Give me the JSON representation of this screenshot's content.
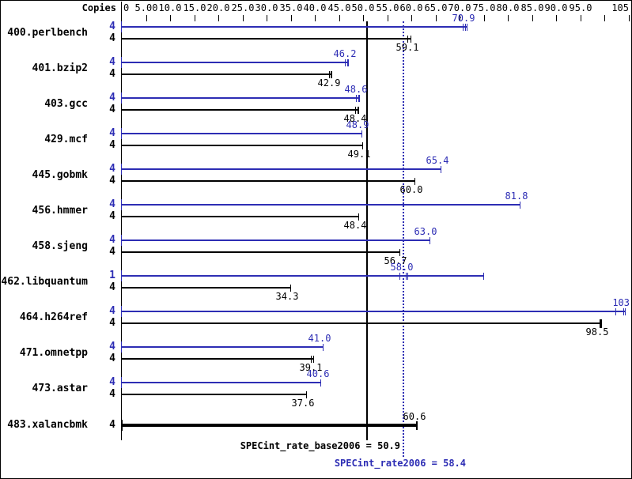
{
  "chart_data": {
    "type": "bar",
    "orientation": "horizontal",
    "copies_header": "Copies",
    "xlabel": "",
    "ylabel": "",
    "xlim": [
      0,
      105
    ],
    "grid": false,
    "axis_labels": [
      {
        "v": 0,
        "t": "0"
      },
      {
        "v": 5,
        "t": "5.00"
      },
      {
        "v": 10,
        "t": "10.0"
      },
      {
        "v": 15,
        "t": "15.0"
      },
      {
        "v": 20,
        "t": "20.0"
      },
      {
        "v": 25,
        "t": "25.0"
      },
      {
        "v": 30,
        "t": "30.0"
      },
      {
        "v": 35,
        "t": "35.0"
      },
      {
        "v": 40,
        "t": "40.0"
      },
      {
        "v": 45,
        "t": "45.0"
      },
      {
        "v": 50,
        "t": "50.0"
      },
      {
        "v": 55,
        "t": "55.0"
      },
      {
        "v": 60,
        "t": "60.0"
      },
      {
        "v": 65,
        "t": "65.0"
      },
      {
        "v": 70,
        "t": "70.0"
      },
      {
        "v": 75,
        "t": "75.0"
      },
      {
        "v": 80,
        "t": "80.0"
      },
      {
        "v": 85,
        "t": "85.0"
      },
      {
        "v": 90,
        "t": "90.0"
      },
      {
        "v": 95,
        "t": "95.0"
      },
      {
        "v": 105,
        "t": "105"
      }
    ],
    "axis_tick_values": [
      5,
      10,
      15,
      20,
      25,
      30,
      35,
      40,
      45,
      50,
      55,
      60,
      65,
      70,
      75,
      80,
      85,
      90,
      95,
      100,
      105
    ],
    "colors": {
      "peak": "#2d2db4",
      "base": "#000000",
      "background": "#ffffff"
    },
    "legend": {
      "peak_is_blue": true,
      "base_is_black": true,
      "bold_bar_means": "base and peak equal"
    },
    "benchmarks": [
      {
        "name": "400.perlbench",
        "bars": [
          {
            "kind": "peak",
            "copies": "4",
            "label": "70.9",
            "value": 70.9,
            "end": 71.5,
            "runs": [
              70.6,
              71.2
            ]
          },
          {
            "kind": "base",
            "copies": "4",
            "label": "59.1",
            "value": 59.1,
            "end": 59.9,
            "runs": [
              59.1
            ]
          }
        ]
      },
      {
        "name": "401.bzip2",
        "bars": [
          {
            "kind": "peak",
            "copies": "4",
            "label": "46.2",
            "value": 46.2,
            "end": 46.9,
            "runs": [
              46.2,
              46.7
            ]
          },
          {
            "kind": "base",
            "copies": "4",
            "label": "42.9",
            "value": 42.9,
            "end": 43.5,
            "runs": [
              42.9,
              43.3
            ]
          }
        ]
      },
      {
        "name": "403.gcc",
        "bars": [
          {
            "kind": "peak",
            "copies": "4",
            "label": "48.6",
            "value": 48.6,
            "end": 49.2,
            "runs": [
              48.6,
              49.0
            ]
          },
          {
            "kind": "base",
            "copies": "4",
            "label": "48.4",
            "value": 48.4,
            "end": 49.0,
            "runs": [
              48.4,
              48.8
            ]
          }
        ]
      },
      {
        "name": "429.mcf",
        "bars": [
          {
            "kind": "peak",
            "copies": "4",
            "label": "48.9",
            "value": 48.9,
            "end": 49.6,
            "runs": []
          },
          {
            "kind": "base",
            "copies": "4",
            "label": "49.1",
            "value": 49.1,
            "end": 49.9,
            "runs": []
          }
        ]
      },
      {
        "name": "445.gobmk",
        "bars": [
          {
            "kind": "peak",
            "copies": "4",
            "label": "65.4",
            "value": 65.4,
            "end": 66.0,
            "runs": []
          },
          {
            "kind": "base",
            "copies": "4",
            "label": "60.0",
            "value": 60.0,
            "end": 60.6,
            "runs": []
          }
        ]
      },
      {
        "name": "456.hmmer",
        "bars": [
          {
            "kind": "peak",
            "copies": "4",
            "label": "81.8",
            "value": 81.8,
            "end": 82.5,
            "runs": []
          },
          {
            "kind": "base",
            "copies": "4",
            "label": "48.4",
            "value": 48.4,
            "end": 49.0,
            "runs": []
          }
        ]
      },
      {
        "name": "458.sjeng",
        "bars": [
          {
            "kind": "peak",
            "copies": "4",
            "label": "63.0",
            "value": 63.0,
            "end": 63.7,
            "runs": []
          },
          {
            "kind": "base",
            "copies": "4",
            "label": "56.7",
            "value": 56.7,
            "end": 57.5,
            "runs": []
          }
        ]
      },
      {
        "name": "462.libquantum",
        "bars": [
          {
            "kind": "peak",
            "copies": "1",
            "label": "58.0",
            "value": 58.0,
            "end": 74.9,
            "runs": [
              57.6,
              58.8,
              59.2
            ]
          },
          {
            "kind": "base",
            "copies": "4",
            "label": "34.3",
            "value": 34.3,
            "end": 34.9,
            "runs": []
          }
        ]
      },
      {
        "name": "464.h264ref",
        "bars": [
          {
            "kind": "peak",
            "copies": "4",
            "label": "103",
            "value": 103,
            "end": 104.3,
            "runs": [
              102.3,
              103.9
            ]
          },
          {
            "kind": "base",
            "copies": "4",
            "label": "98.5",
            "value": 98.5,
            "end": 99.2,
            "runs": [],
            "thick_end": true
          }
        ]
      },
      {
        "name": "471.omnetpp",
        "bars": [
          {
            "kind": "peak",
            "copies": "4",
            "label": "41.0",
            "value": 41.0,
            "end": 41.6,
            "runs": []
          },
          {
            "kind": "base",
            "copies": "4",
            "label": "39.1",
            "value": 39.1,
            "end": 39.6,
            "runs": [
              39.1
            ]
          }
        ]
      },
      {
        "name": "473.astar",
        "bars": [
          {
            "kind": "peak",
            "copies": "4",
            "label": "40.6",
            "value": 40.6,
            "end": 41.2,
            "runs": []
          },
          {
            "kind": "base",
            "copies": "4",
            "label": "37.6",
            "value": 37.6,
            "end": 38.2,
            "runs": []
          }
        ]
      },
      {
        "name": "483.xalancbmk",
        "bars": [
          {
            "kind": "basepeak",
            "copies": "4",
            "label": "60.6",
            "value": 60.6,
            "end": 61.2,
            "runs": [],
            "bold": true
          }
        ]
      }
    ],
    "reference_lines": [
      {
        "id": "base",
        "label": "SPECint_rate_base2006 = 50.9",
        "value": 50.9,
        "style": "solid",
        "color": "#000000"
      },
      {
        "id": "peak",
        "label": "SPECint_rate2006 = 58.4",
        "value": 58.4,
        "style": "dotted",
        "color": "#2d2db4"
      }
    ]
  }
}
